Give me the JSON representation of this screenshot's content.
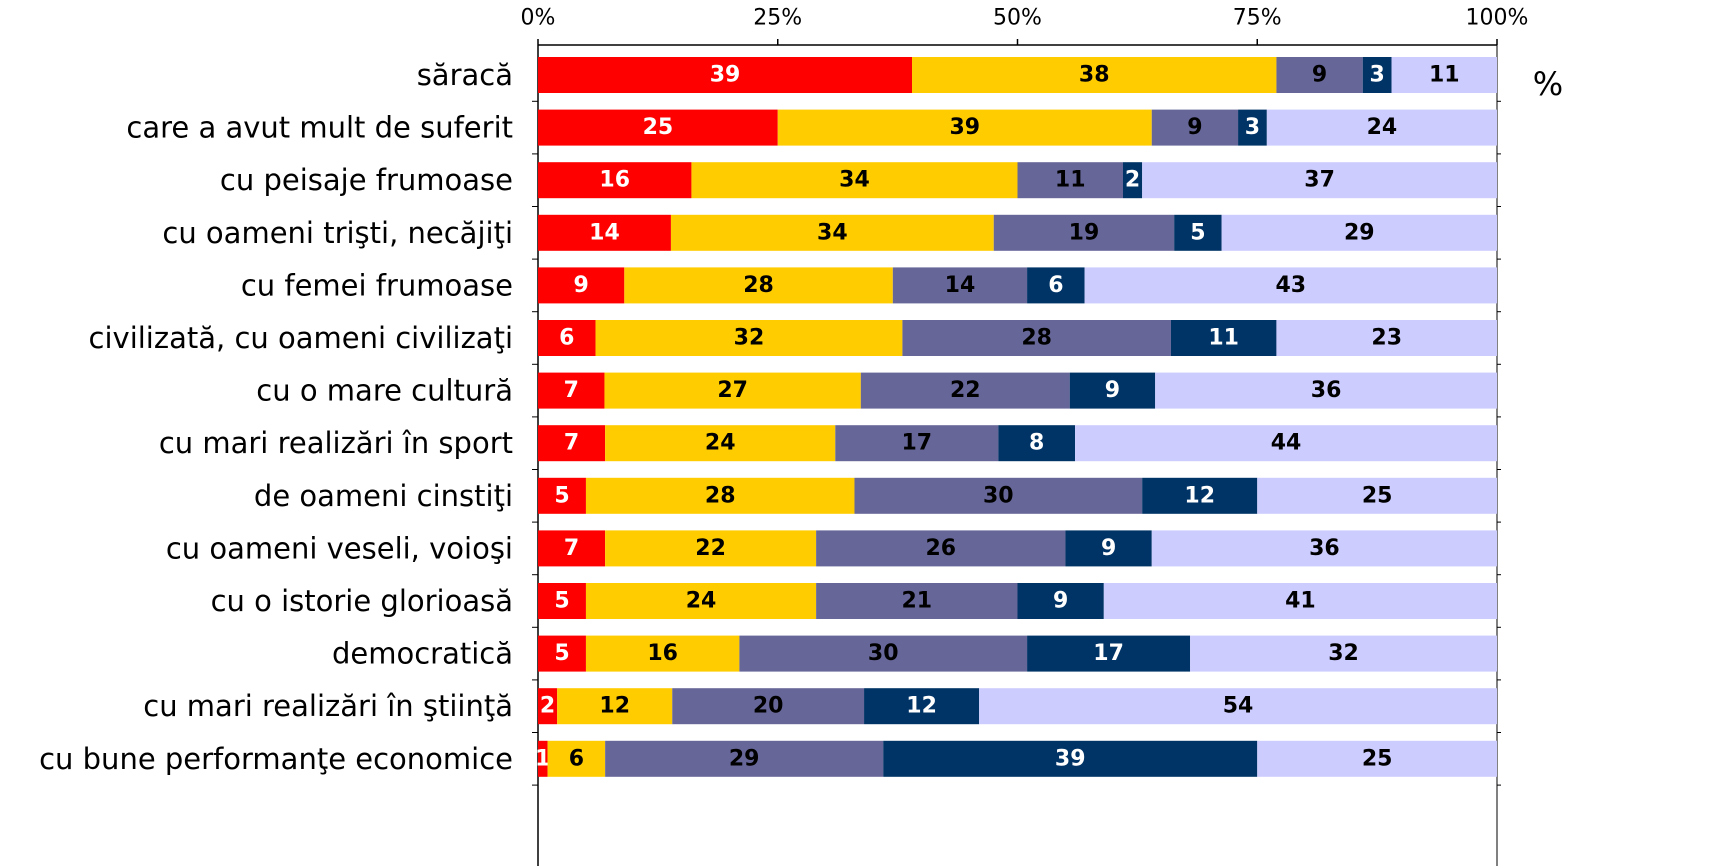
{
  "chart_data": {
    "type": "stacked-bar-100",
    "annotation": "%",
    "categories": [
      "săracă",
      "care a avut mult de suferit",
      "cu peisaje frumoase",
      "cu oameni trişti, necăjiţi",
      "cu femei frumoase",
      "civilizată, cu oameni civilizaţi",
      "cu o mare cultură",
      "cu mari realizări în sport",
      "de oameni cinstiţi ",
      "cu oameni veseli, voioşi",
      "cu o istorie glorioasă",
      "democratică",
      "cu mari realizări în ştiinţă",
      "cu bune performanţe economice"
    ],
    "series": [
      {
        "color": "#ff0000",
        "label_color": "#ffffff",
        "values": [
          39,
          25,
          16,
          14,
          9,
          6,
          7,
          7,
          5,
          7,
          5,
          5,
          2,
          1
        ]
      },
      {
        "color": "#ffcc00",
        "label_color": "#000000",
        "values": [
          38,
          39,
          34,
          34,
          28,
          32,
          27,
          24,
          28,
          22,
          24,
          16,
          12,
          6
        ]
      },
      {
        "color": "#666699",
        "label_color": "#000000",
        "values": [
          9,
          9,
          11,
          19,
          14,
          28,
          22,
          17,
          30,
          26,
          21,
          30,
          20,
          29
        ]
      },
      {
        "color": "#003366",
        "label_color": "#ffffff",
        "values": [
          3,
          3,
          2,
          5,
          6,
          11,
          9,
          8,
          12,
          9,
          9,
          17,
          12,
          39
        ]
      },
      {
        "color": "#ccccff",
        "label_color": "#000000",
        "values": [
          11,
          24,
          37,
          29,
          43,
          23,
          36,
          44,
          25,
          36,
          41,
          32,
          54,
          25
        ]
      }
    ],
    "xlim": [
      0,
      100
    ],
    "xticks": [
      {
        "value": 0,
        "label": "0%"
      },
      {
        "value": 25,
        "label": "25%"
      },
      {
        "value": 50,
        "label": "50%"
      },
      {
        "value": 75,
        "label": "75%"
      },
      {
        "value": 100,
        "label": "100%"
      }
    ]
  }
}
